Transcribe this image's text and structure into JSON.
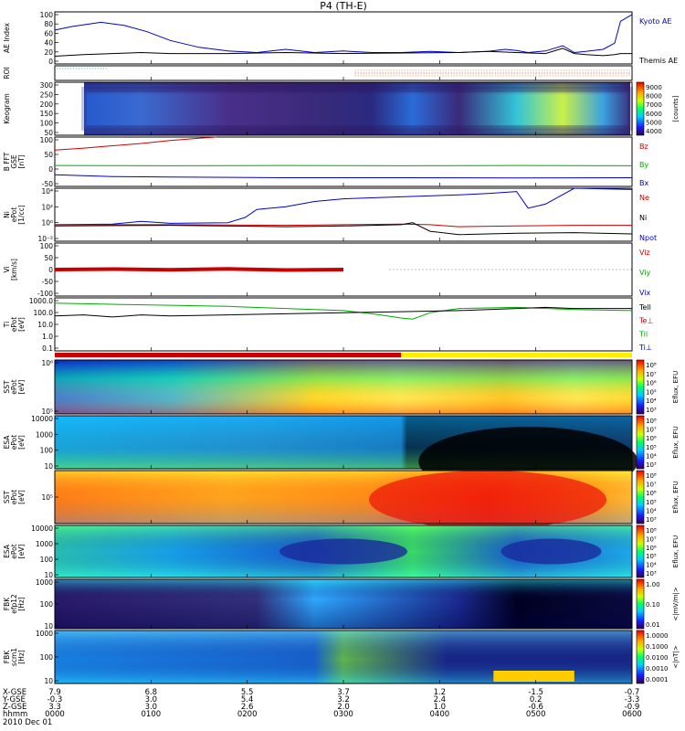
{
  "title": "P4 (TH-E)",
  "chart_data": [
    {
      "type": "line",
      "panel": "ae",
      "ylabel": "AE Index",
      "yticks": [
        "100",
        "80",
        "60",
        "40",
        "20",
        "0"
      ],
      "ylim": [
        0,
        100
      ],
      "legend": [
        {
          "label": "Kyoto AE",
          "color": "#0000cc"
        },
        {
          "label": "Themis AE",
          "color": "#000000"
        }
      ],
      "series": [
        {
          "name": "Kyoto AE",
          "color": "#0000cc",
          "x": [
            0,
            0.03,
            0.08,
            0.12,
            0.16,
            0.2,
            0.25,
            0.3,
            0.35,
            0.4,
            0.45,
            0.5,
            0.55,
            0.6,
            0.65,
            0.7,
            0.75,
            0.78,
            0.8,
            0.82,
            0.85,
            0.88,
            0.9,
            0.92,
            0.95,
            0.97,
            0.98,
            1.0
          ],
          "y": [
            65,
            72,
            80,
            74,
            62,
            45,
            32,
            25,
            22,
            28,
            22,
            25,
            22,
            22,
            24,
            22,
            24,
            28,
            26,
            22,
            25,
            35,
            22,
            24,
            28,
            40,
            82,
            95
          ]
        },
        {
          "name": "Themis AE",
          "color": "#000000",
          "x": [
            0,
            0.05,
            0.1,
            0.15,
            0.2,
            0.3,
            0.4,
            0.5,
            0.6,
            0.7,
            0.75,
            0.8,
            0.85,
            0.88,
            0.9,
            0.92,
            0.95,
            0.97,
            0.98,
            1.0
          ],
          "y": [
            15,
            18,
            20,
            22,
            20,
            20,
            22,
            20,
            21,
            22,
            24,
            22,
            20,
            30,
            20,
            18,
            16,
            18,
            20,
            20
          ]
        }
      ]
    },
    {
      "type": "line",
      "panel": "roi",
      "ylabel": "ROI"
    },
    {
      "type": "heatmap",
      "panel": "keogram",
      "ylabel": "Keogram",
      "yticks": [
        "300",
        "250",
        "200",
        "150",
        "100",
        "50"
      ],
      "ylim": [
        50,
        300
      ],
      "colorbar": {
        "ticks": [
          "9000",
          "8000",
          "7000",
          "6000",
          "5000",
          "4000"
        ],
        "label": "[counts]"
      }
    },
    {
      "type": "line",
      "panel": "bfield",
      "ylabel": "B FFT",
      "ylabel2": "GSE",
      "units": "[nT]",
      "yticks": [
        "100",
        "50",
        "0",
        "-50"
      ],
      "ylim": [
        -70,
        100
      ],
      "legend": [
        {
          "label": "Bz",
          "color": "#cc0000"
        },
        {
          "label": "By",
          "color": "#00aa00"
        },
        {
          "label": "Bx",
          "color": "#0000cc"
        }
      ],
      "series": [
        {
          "name": "Bz",
          "color": "#cc0000",
          "x": [
            0,
            0.05,
            0.1,
            0.15,
            0.2,
            0.25,
            0.28
          ],
          "y": [
            55,
            62,
            70,
            78,
            88,
            96,
            100
          ]
        },
        {
          "name": "By",
          "color": "#00aa00",
          "x": [
            0,
            0.2,
            0.4,
            0.6,
            0.8,
            1.0
          ],
          "y": [
            2,
            1,
            2,
            1,
            2,
            1
          ]
        },
        {
          "name": "Bx",
          "color": "#0000cc",
          "x": [
            0,
            0.1,
            0.2,
            0.4,
            0.6,
            0.8,
            1.0
          ],
          "y": [
            -30,
            -36,
            -38,
            -40,
            -40,
            -41,
            -40
          ]
        }
      ]
    },
    {
      "type": "line",
      "panel": "density",
      "ylabel": "Ni",
      "ylabel2": "ePot",
      "units": "[1/cc]",
      "yticks": [
        "10⁴",
        "10²",
        "10⁰",
        "10⁻²"
      ],
      "ylim": [
        -3,
        5
      ],
      "legend": [
        {
          "label": "Ne",
          "color": "#cc0000"
        },
        {
          "label": "Ni",
          "color": "#000000"
        },
        {
          "label": "Npot",
          "color": "#0000cc"
        }
      ],
      "series": [
        {
          "name": "Npot",
          "color": "#0000cc",
          "x": [
            0,
            0.1,
            0.15,
            0.2,
            0.3,
            0.33,
            0.35,
            0.4,
            0.45,
            0.5,
            0.6,
            0.7,
            0.75,
            0.8,
            0.82,
            0.85,
            0.9,
            1.0
          ],
          "y": [
            -0.5,
            -0.4,
            0,
            -0.3,
            -0.2,
            0.6,
            1.8,
            2.2,
            3.0,
            3.4,
            3.7,
            4.0,
            4.2,
            4.5,
            2.0,
            2.6,
            5.0,
            4.8
          ]
        },
        {
          "name": "Ne",
          "color": "#cc0000",
          "x": [
            0,
            0.2,
            0.4,
            0.5,
            0.6,
            0.65,
            0.7,
            0.8,
            0.9,
            1.0
          ],
          "y": [
            -0.5,
            -0.5,
            -0.6,
            -0.5,
            -0.4,
            -0.5,
            -0.8,
            -0.7,
            -0.6,
            -0.6
          ]
        },
        {
          "name": "Ni",
          "color": "#000000",
          "x": [
            0,
            0.2,
            0.4,
            0.5,
            0.6,
            0.62,
            0.65,
            0.7,
            0.8,
            0.9,
            1.0
          ],
          "y": [
            -0.7,
            -0.6,
            -0.8,
            -0.7,
            -0.5,
            -0.2,
            -1.5,
            -2.0,
            -1.8,
            -1.7,
            -1.9
          ]
        }
      ]
    },
    {
      "type": "line",
      "panel": "velocity",
      "ylabel": "Vi",
      "units": "[km/s]",
      "yticks": [
        "100",
        "50",
        "0",
        "-50",
        "-100"
      ],
      "ylim": [
        -120,
        120
      ],
      "legend": [
        {
          "label": "Viz",
          "color": "#cc0000"
        },
        {
          "label": "Viy",
          "color": "#00aa00"
        },
        {
          "label": "Vix",
          "color": "#0000cc"
        }
      ],
      "series": [
        {
          "name": "Viz",
          "color": "#cc0000",
          "x": [
            0,
            0.1,
            0.2,
            0.3,
            0.4,
            0.5
          ],
          "y": [
            0,
            2,
            -1,
            3,
            -2,
            0
          ]
        }
      ]
    },
    {
      "type": "line",
      "panel": "temperature",
      "ylabel": "Ti",
      "ylabel2": "ePot",
      "units": "[eV]",
      "yticks": [
        "1000.0",
        "100.0",
        "10.0",
        "1.0",
        "0.1"
      ],
      "ylim": [
        -1.5,
        3.5
      ],
      "legend": [
        {
          "label": "Tell",
          "color": "#000000"
        },
        {
          "label": "Te⊥",
          "color": "#cc0000"
        },
        {
          "label": "Til",
          "color": "#00aa00"
        },
        {
          "label": "Ti⊥",
          "color": "#0000cc"
        }
      ],
      "series": [
        {
          "name": "Ti",
          "color": "#00aa00",
          "x": [
            0,
            0.1,
            0.2,
            0.3,
            0.4,
            0.5,
            0.55,
            0.6,
            0.62,
            0.65,
            0.7,
            0.8,
            0.9,
            1.0
          ],
          "y": [
            3.0,
            2.9,
            2.8,
            2.7,
            2.5,
            2.3,
            2.0,
            1.6,
            1.5,
            2.1,
            2.5,
            2.6,
            2.4,
            2.3
          ]
        },
        {
          "name": "Te",
          "color": "#000000",
          "x": [
            0,
            0.05,
            0.1,
            0.15,
            0.2,
            0.3,
            0.4,
            0.5,
            0.6,
            0.7,
            0.8,
            0.85,
            0.9,
            1.0
          ],
          "y": [
            1.8,
            1.9,
            1.7,
            1.9,
            1.8,
            1.9,
            2.0,
            2.1,
            2.2,
            2.3,
            2.5,
            2.6,
            2.5,
            2.5
          ]
        }
      ]
    },
    {
      "type": "heatmap",
      "panel": "sst1",
      "ylabel": "SST",
      "ylabel2": "ePot",
      "units": "[eV]",
      "yticks": [
        "10⁶",
        "10⁵"
      ],
      "colorbar": {
        "ticks": [
          "10⁸",
          "10⁷",
          "10⁶",
          "10⁵",
          "10⁴",
          "10³"
        ],
        "label": "Eflux, EFU"
      }
    },
    {
      "type": "heatmap",
      "panel": "esa1",
      "ylabel": "ESA",
      "ylabel2": "ePot",
      "units": "[eV]",
      "yticks": [
        "10000",
        "1000",
        "100",
        "10"
      ],
      "colorbar": {
        "ticks": [
          "10⁸",
          "10⁷",
          "10⁶",
          "10⁵",
          "10⁴",
          "10³"
        ],
        "label": "Eflux, EFU"
      }
    },
    {
      "type": "heatmap",
      "panel": "sst2",
      "ylabel": "SST",
      "ylabel2": "ePot",
      "units": "[eV]",
      "yticks": [
        "10⁵"
      ],
      "colorbar": {
        "ticks": [
          "10⁸",
          "10⁷",
          "10⁶",
          "10⁵",
          "10⁴",
          "10³"
        ],
        "label": "Eflux, EFU"
      }
    },
    {
      "type": "heatmap",
      "panel": "esa2",
      "ylabel": "ESA",
      "ylabel2": "ePot",
      "units": "[eV]",
      "yticks": [
        "10000",
        "1000",
        "100",
        "10"
      ],
      "colorbar": {
        "ticks": [
          "10⁸",
          "10⁷",
          "10⁶",
          "10⁵",
          "10⁴",
          "10³"
        ],
        "label": "Eflux, EFU"
      }
    },
    {
      "type": "heatmap",
      "panel": "fbk1",
      "ylabel": "FBK",
      "ylabel2": "efp12",
      "units": "[Hz]",
      "yticks": [
        "1000",
        "100",
        "10"
      ],
      "colorbar": {
        "ticks": [
          "1.00",
          "0.10",
          "0.01"
        ],
        "label": "<|mV/m|>"
      }
    },
    {
      "type": "heatmap",
      "panel": "fbk2",
      "ylabel": "FBK",
      "ylabel2": "scm1",
      "units": "[Hz]",
      "yticks": [
        "1000",
        "100",
        "10"
      ],
      "colorbar": {
        "ticks": [
          "1.0000",
          "0.1000",
          "0.0100",
          "0.0010",
          "0.0001"
        ],
        "label": "<|nT|>"
      }
    }
  ],
  "xaxis": {
    "labels": [
      "X-GSE",
      "Y-GSE",
      "Z-GSE",
      "hhmm",
      "2010 Dec 01"
    ],
    "columns": [
      [
        "7.9",
        "-0.3",
        "3.3",
        "0000"
      ],
      [
        "6.8",
        "3.0",
        "3.0",
        "0100"
      ],
      [
        "5.5",
        "5.4",
        "2.6",
        "0200"
      ],
      [
        "3.7",
        "3.2",
        "2.0",
        "0300"
      ],
      [
        "1.2",
        "2.4",
        "1.0",
        "0400"
      ],
      [
        "-1.5",
        "0.2",
        "-0.6",
        "0500"
      ],
      [
        "-0.7",
        "-3.3",
        "-0.9",
        "0600"
      ]
    ]
  },
  "colors": {
    "frame": "#000000",
    "background": "#ffffff"
  }
}
